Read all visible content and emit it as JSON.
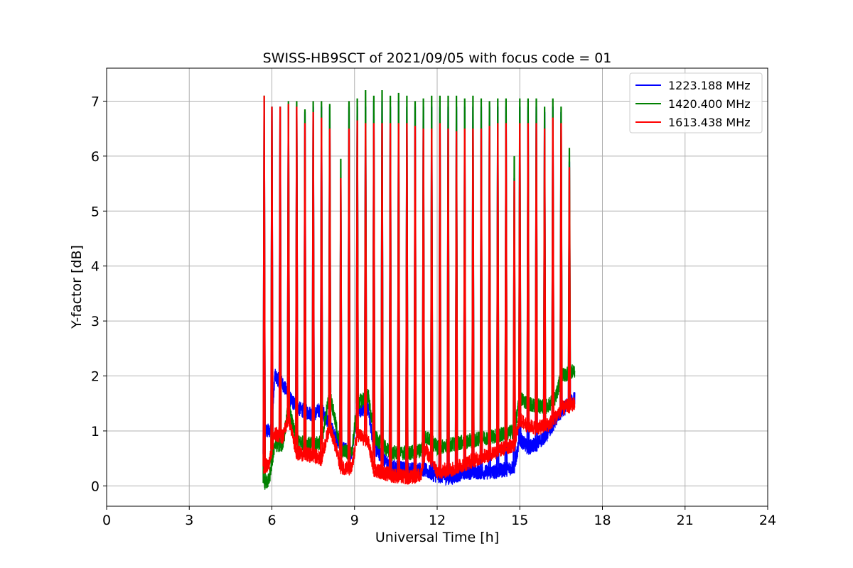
{
  "chart_data": {
    "type": "line",
    "title": "SWISS-HB9SCT of 2021/09/05 with focus code = 01",
    "xlabel": "Universal Time [h]",
    "ylabel": "Y-factor [dB]",
    "xlim": [
      0,
      24
    ],
    "ylim": [
      -0.37,
      7.6
    ],
    "xticks": [
      0,
      3,
      6,
      9,
      12,
      15,
      18,
      21,
      24
    ],
    "yticks": [
      0,
      1,
      2,
      3,
      4,
      5,
      6,
      7
    ],
    "grid": true,
    "legend_position": "top-right",
    "spike_times": [
      5.72,
      6.0,
      6.3,
      6.6,
      6.9,
      7.2,
      7.5,
      7.8,
      8.1,
      8.5,
      8.8,
      9.1,
      9.4,
      9.7,
      10.0,
      10.3,
      10.6,
      10.9,
      11.2,
      11.5,
      11.8,
      12.1,
      12.4,
      12.7,
      13.0,
      13.3,
      13.6,
      13.9,
      14.2,
      14.5,
      14.8,
      15.0,
      15.3,
      15.6,
      15.9,
      16.2,
      16.5,
      16.8
    ],
    "series": [
      {
        "name": "1223.188 MHz",
        "color": "#0000ff",
        "spike_peaks": [
          7.0,
          6.9,
          6.9,
          6.9,
          6.9,
          6.8,
          6.9,
          6.9,
          6.9,
          5.6,
          6.9,
          6.9,
          6.9,
          7.0,
          7.0,
          6.9,
          7.0,
          6.9,
          6.9,
          6.9,
          6.9,
          6.9,
          6.9,
          6.9,
          6.9,
          6.9,
          6.9,
          6.9,
          6.9,
          6.9,
          5.6,
          6.9,
          6.9,
          6.9,
          6.8,
          6.9,
          6.8,
          5.9
        ],
        "baseline": [
          [
            5.7,
            0.3
          ],
          [
            5.75,
            1.0
          ],
          [
            6.0,
            1.0
          ],
          [
            6.1,
            2.0
          ],
          [
            6.4,
            1.85
          ],
          [
            6.7,
            1.55
          ],
          [
            7.0,
            1.4
          ],
          [
            7.5,
            1.3
          ],
          [
            7.8,
            1.4
          ],
          [
            8.1,
            1.1
          ],
          [
            8.5,
            0.7
          ],
          [
            8.9,
            0.6
          ],
          [
            9.1,
            1.4
          ],
          [
            9.5,
            1.4
          ],
          [
            9.7,
            0.7
          ],
          [
            10.3,
            0.35
          ],
          [
            11.0,
            0.3
          ],
          [
            11.5,
            0.3
          ],
          [
            11.9,
            0.2
          ],
          [
            12.5,
            0.15
          ],
          [
            13.0,
            0.25
          ],
          [
            13.5,
            0.25
          ],
          [
            14.0,
            0.25
          ],
          [
            14.5,
            0.3
          ],
          [
            14.8,
            0.35
          ],
          [
            15.0,
            0.85
          ],
          [
            15.3,
            0.7
          ],
          [
            15.6,
            0.75
          ],
          [
            16.0,
            0.95
          ],
          [
            16.3,
            1.2
          ],
          [
            16.6,
            1.4
          ],
          [
            17.0,
            1.6
          ]
        ]
      },
      {
        "name": "1420.400 MHz",
        "color": "#008000",
        "spike_peaks": [
          7.1,
          6.9,
          6.9,
          7.0,
          7.0,
          6.85,
          7.0,
          7.0,
          6.95,
          5.95,
          7.0,
          7.05,
          7.2,
          7.1,
          7.2,
          7.1,
          7.15,
          7.1,
          7.0,
          7.05,
          7.1,
          7.1,
          7.1,
          7.1,
          7.05,
          7.1,
          7.05,
          7.0,
          7.05,
          7.05,
          6.0,
          7.05,
          7.05,
          7.05,
          6.9,
          7.05,
          6.9,
          6.15
        ],
        "baseline": [
          [
            5.7,
            0.05
          ],
          [
            5.9,
            0.1
          ],
          [
            6.1,
            0.75
          ],
          [
            6.4,
            0.75
          ],
          [
            6.6,
            1.45
          ],
          [
            6.9,
            0.8
          ],
          [
            7.5,
            0.75
          ],
          [
            7.8,
            0.8
          ],
          [
            8.1,
            1.7
          ],
          [
            8.5,
            0.65
          ],
          [
            8.9,
            0.6
          ],
          [
            9.1,
            1.5
          ],
          [
            9.5,
            1.65
          ],
          [
            9.7,
            0.9
          ],
          [
            10.3,
            0.6
          ],
          [
            11.0,
            0.6
          ],
          [
            11.4,
            0.65
          ],
          [
            11.6,
            0.9
          ],
          [
            12.0,
            0.7
          ],
          [
            12.5,
            0.75
          ],
          [
            13.0,
            0.8
          ],
          [
            13.5,
            0.85
          ],
          [
            14.0,
            0.9
          ],
          [
            14.5,
            0.95
          ],
          [
            14.8,
            1.0
          ],
          [
            15.0,
            1.6
          ],
          [
            15.3,
            1.5
          ],
          [
            15.6,
            1.45
          ],
          [
            16.0,
            1.45
          ],
          [
            16.3,
            1.6
          ],
          [
            16.5,
            2.0
          ],
          [
            17.0,
            2.1
          ]
        ]
      },
      {
        "name": "1613.438 MHz",
        "color": "#ff0000",
        "spike_peaks": [
          7.1,
          6.9,
          6.9,
          6.95,
          6.9,
          6.6,
          6.8,
          6.7,
          6.5,
          5.6,
          6.5,
          6.65,
          6.6,
          6.6,
          6.6,
          6.6,
          6.6,
          6.6,
          6.55,
          6.5,
          6.5,
          6.6,
          6.5,
          6.45,
          6.5,
          6.5,
          6.5,
          6.55,
          6.6,
          6.6,
          5.55,
          6.6,
          6.6,
          6.6,
          6.5,
          6.7,
          6.6,
          5.8
        ],
        "baseline": [
          [
            5.7,
            0.35
          ],
          [
            5.9,
            0.4
          ],
          [
            6.1,
            0.95
          ],
          [
            6.4,
            0.9
          ],
          [
            6.6,
            1.25
          ],
          [
            6.9,
            0.6
          ],
          [
            7.5,
            0.55
          ],
          [
            7.8,
            0.5
          ],
          [
            8.1,
            1.1
          ],
          [
            8.5,
            0.35
          ],
          [
            8.9,
            0.3
          ],
          [
            9.1,
            0.95
          ],
          [
            9.5,
            0.8
          ],
          [
            9.7,
            0.3
          ],
          [
            10.3,
            0.2
          ],
          [
            11.0,
            0.15
          ],
          [
            11.4,
            0.2
          ],
          [
            11.6,
            0.65
          ],
          [
            12.0,
            0.25
          ],
          [
            12.5,
            0.3
          ],
          [
            13.0,
            0.4
          ],
          [
            13.5,
            0.5
          ],
          [
            14.0,
            0.6
          ],
          [
            14.5,
            0.7
          ],
          [
            14.8,
            0.75
          ],
          [
            15.0,
            1.2
          ],
          [
            15.3,
            1.1
          ],
          [
            15.6,
            1.05
          ],
          [
            16.0,
            1.1
          ],
          [
            16.3,
            1.25
          ],
          [
            16.5,
            1.4
          ],
          [
            17.0,
            1.5
          ]
        ]
      }
    ]
  }
}
